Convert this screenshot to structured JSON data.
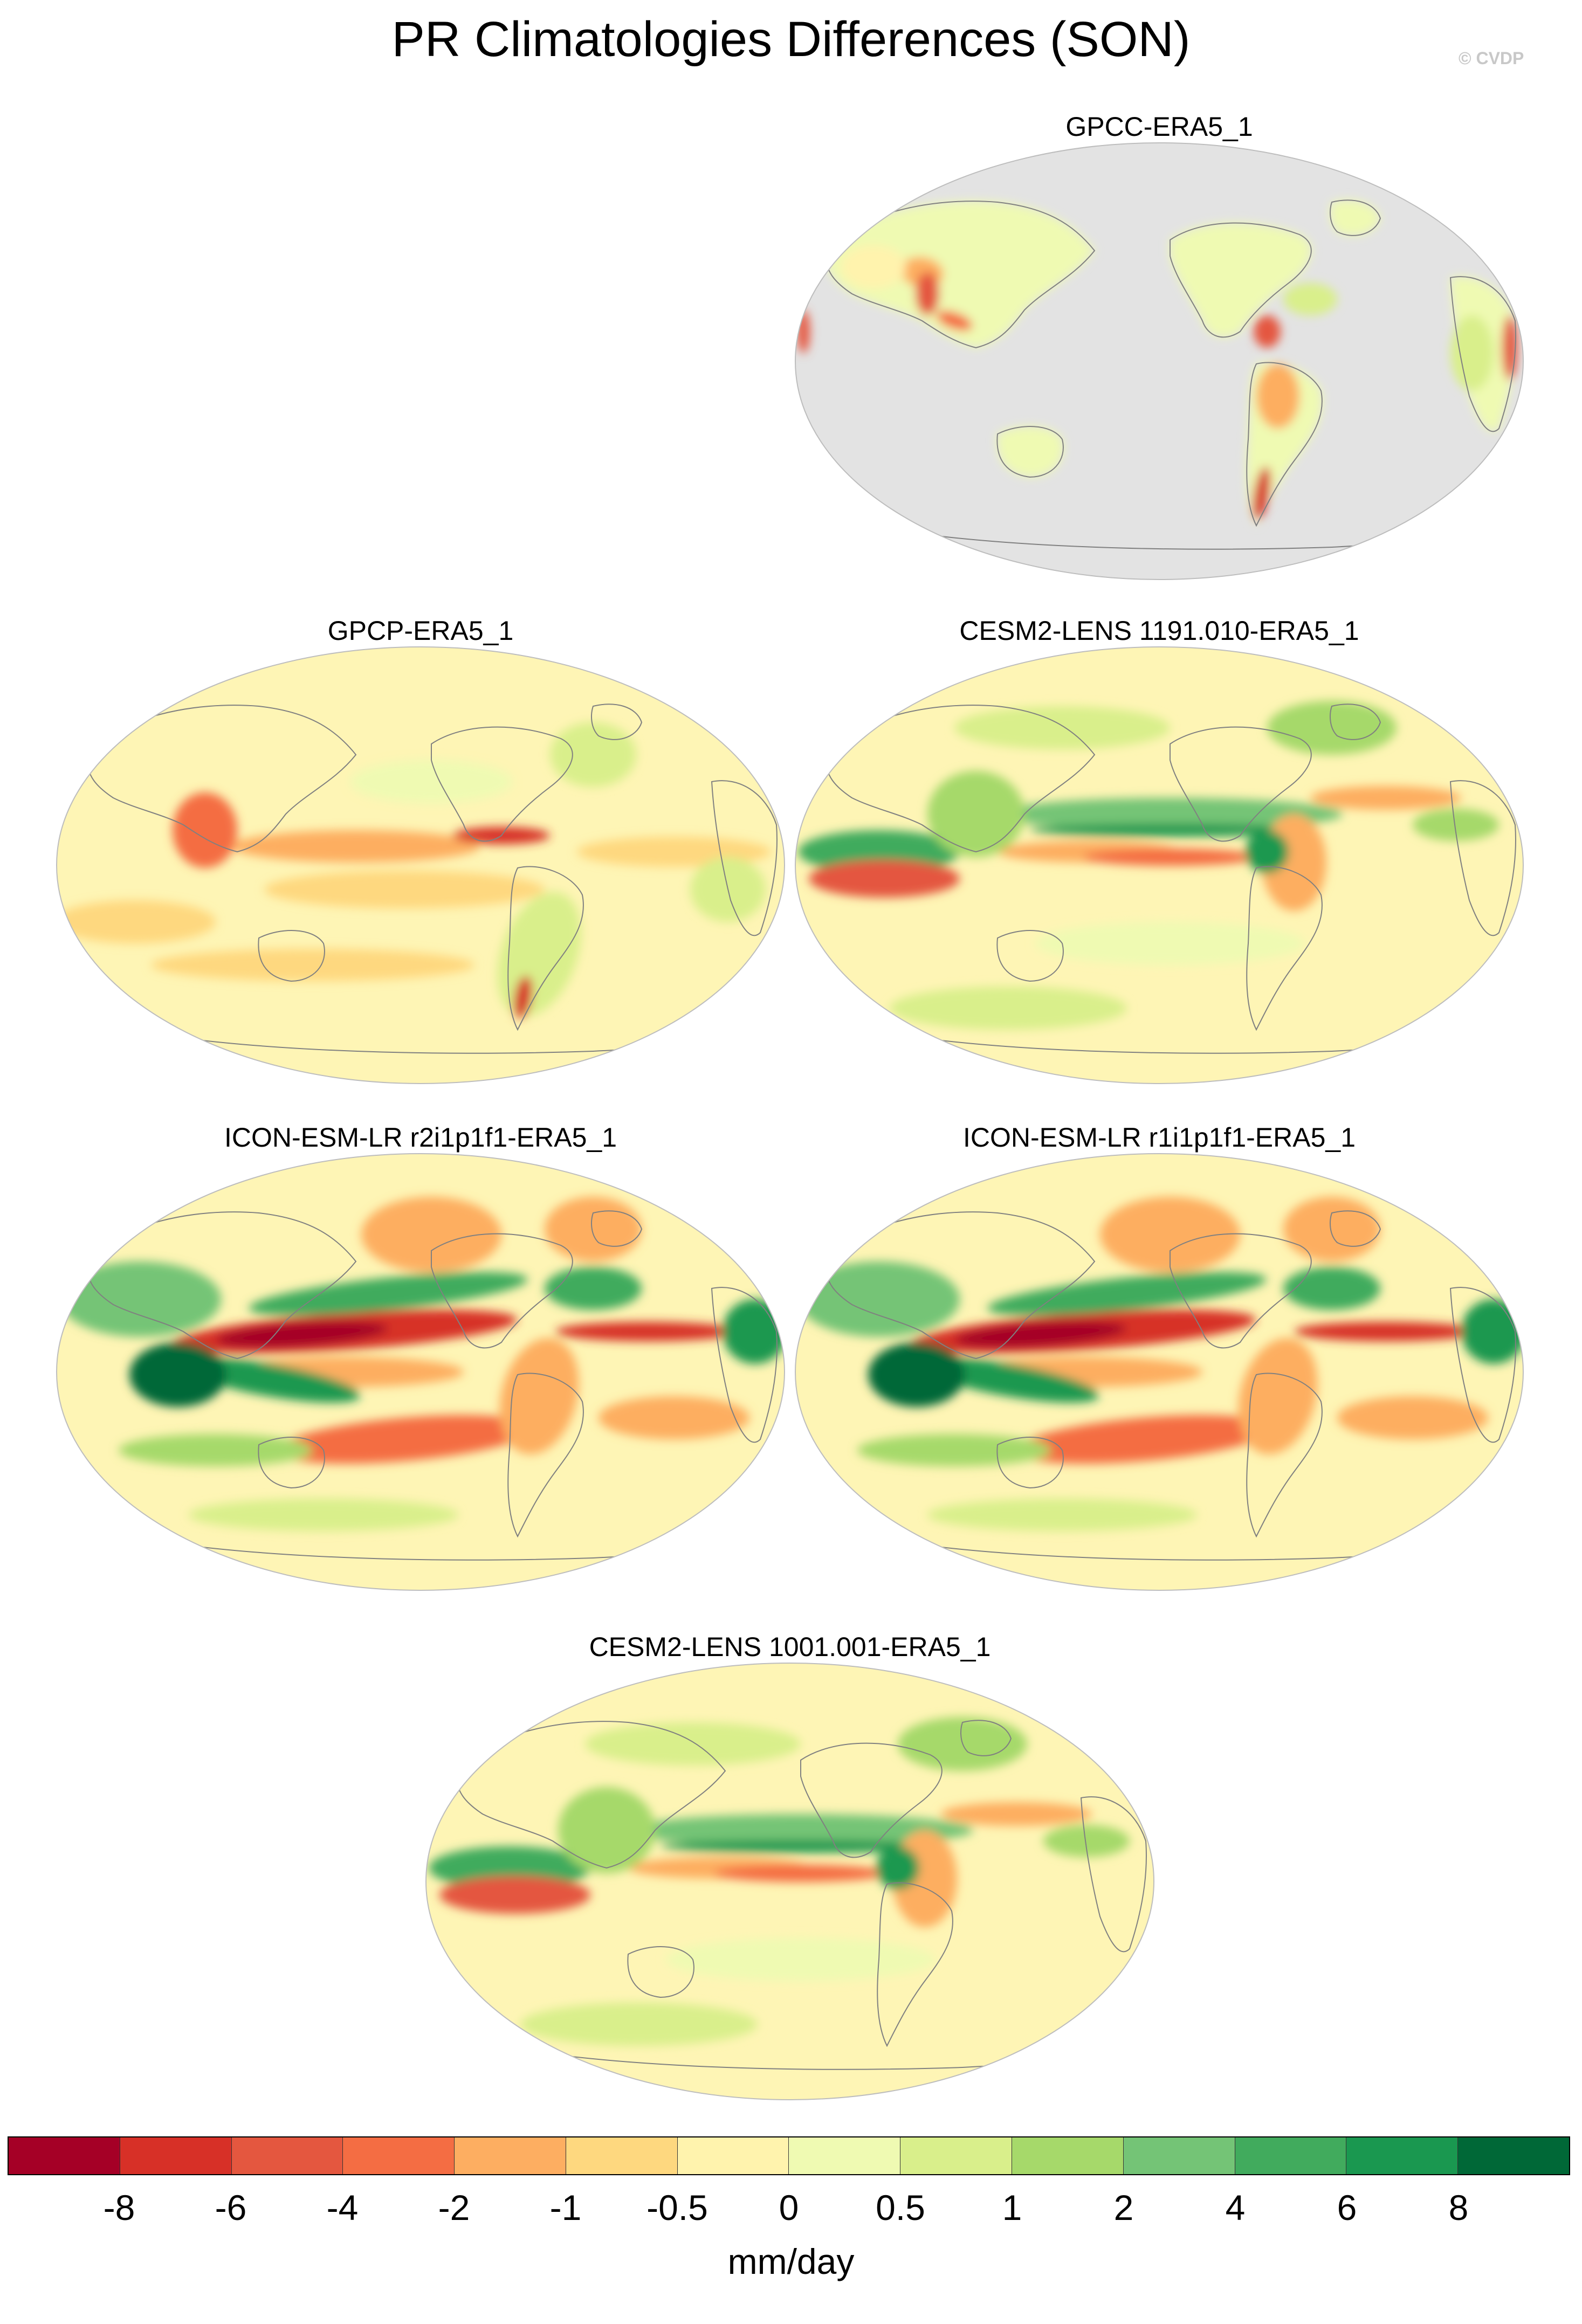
{
  "title": "PR Climatologies Differences (SON)",
  "watermark": "© CVDP",
  "panels": [
    {
      "id": "p-gpcc",
      "label": "GPCC-ERA5_1",
      "land_only": true
    },
    {
      "id": "p-gpcp",
      "label": "GPCP-ERA5_1",
      "land_only": false
    },
    {
      "id": "p-cesm1191",
      "label": "CESM2-LENS 1191.010-ERA5_1",
      "land_only": false
    },
    {
      "id": "p-icon2",
      "label": "ICON-ESM-LR r2i1p1f1-ERA5_1",
      "land_only": false
    },
    {
      "id": "p-icon1",
      "label": "ICON-ESM-LR r1i1p1f1-ERA5_1",
      "land_only": false
    },
    {
      "id": "p-cesm1001",
      "label": "CESM2-LENS 1001.001-ERA5_1",
      "land_only": false
    }
  ],
  "colorbar": {
    "colors": [
      "#a50026",
      "#d73027",
      "#e4573f",
      "#f46d43",
      "#fdae61",
      "#fed87f",
      "#fff3ad",
      "#effab2",
      "#d9ef8b",
      "#a6d96a",
      "#74c476",
      "#41ab5d",
      "#1a9850",
      "#006837"
    ],
    "ticks": [
      "-8",
      "-6",
      "-4",
      "-2",
      "-1",
      "-0.5",
      "0",
      "0.5",
      "1",
      "2",
      "4",
      "6",
      "8"
    ],
    "units": "mm/day"
  },
  "style": {
    "missing_fill": "#e3e3e3",
    "base_fill": "#fef5b5",
    "coast_color": "#808080"
  }
}
